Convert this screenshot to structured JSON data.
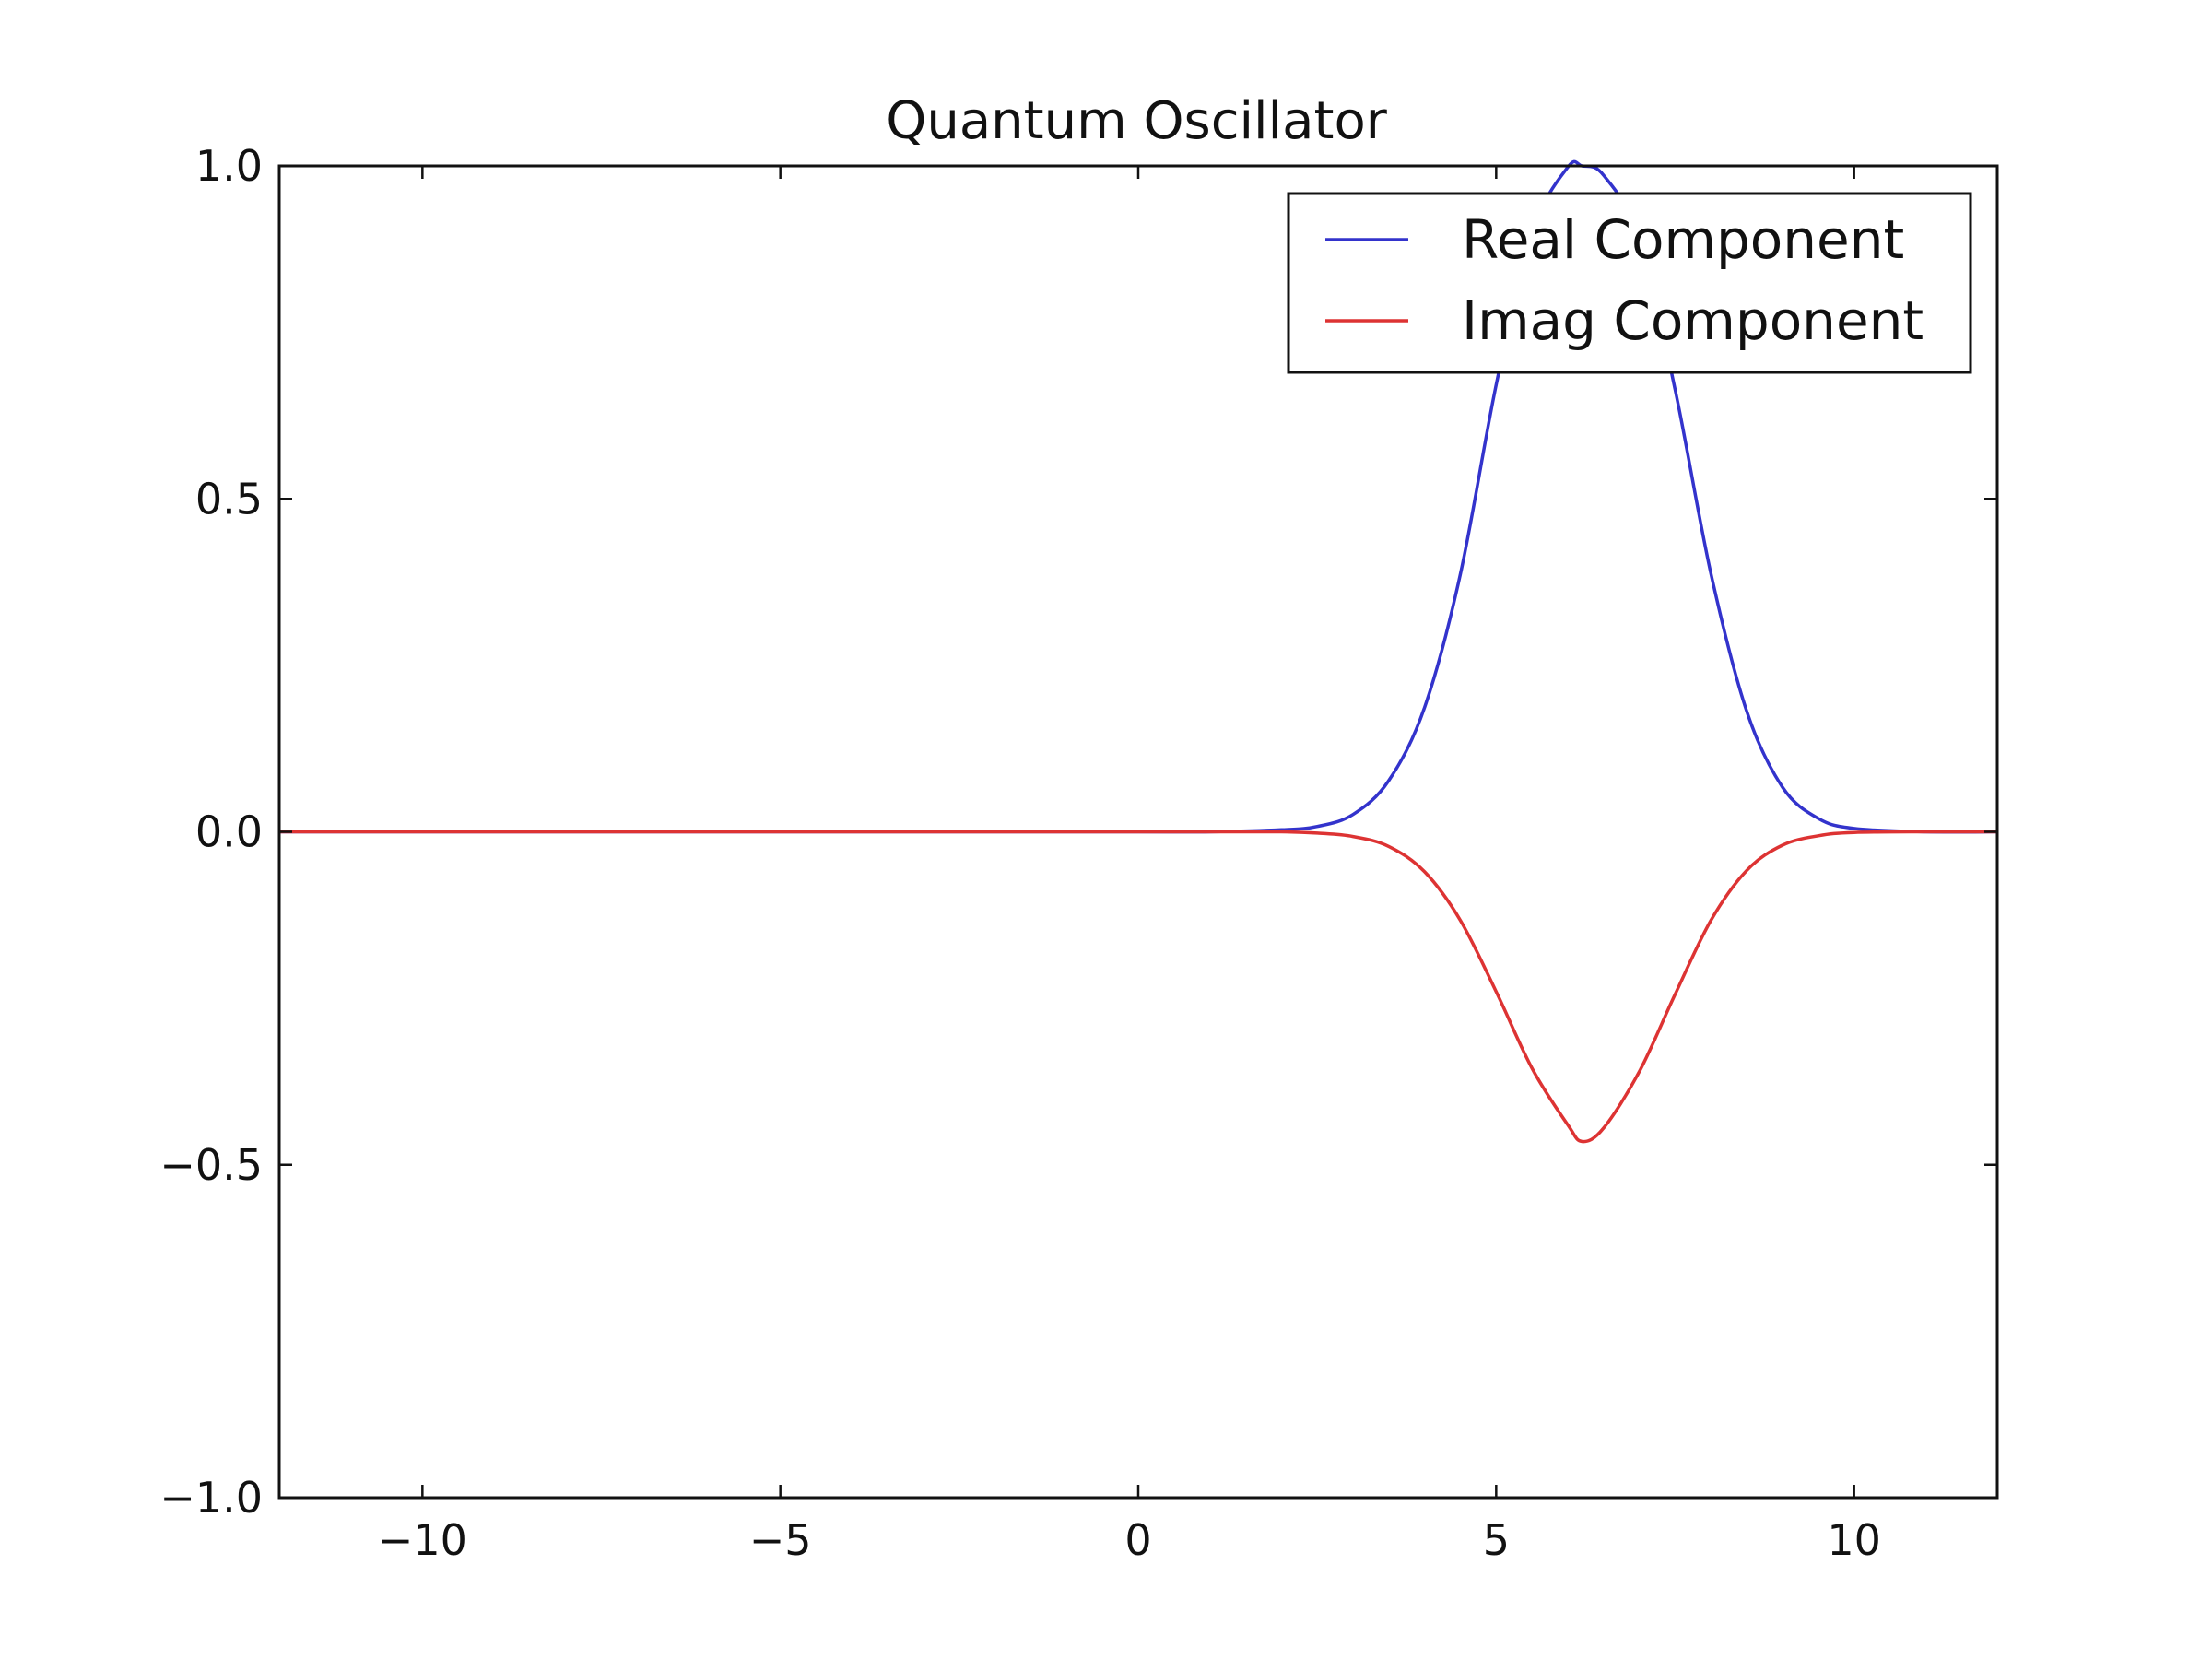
{
  "chart_data": {
    "type": "line",
    "title": "Quantum Oscillator",
    "xlabel": "",
    "ylabel": "",
    "xlim": [
      -12,
      12
    ],
    "ylim": [
      -1.0,
      1.0
    ],
    "x_ticks": [
      -10,
      -5,
      0,
      5,
      10
    ],
    "x_tick_labels": [
      "−10",
      "−5",
      "0",
      "5",
      "10"
    ],
    "y_ticks": [
      1.0,
      0.5,
      0.0,
      -0.5,
      -1.0
    ],
    "y_tick_labels": [
      "1.0",
      "0.5",
      "0.0",
      "−0.5",
      "−1.0"
    ],
    "grid": false,
    "legend": {
      "position": "top-right"
    },
    "x": [
      -12,
      -10,
      -8,
      -6,
      -4,
      -2,
      0,
      1,
      2,
      2.5,
      3,
      3.5,
      4,
      4.5,
      5,
      5.5,
      6,
      6.2,
      6.5,
      7,
      7.5,
      8,
      8.5,
      9,
      9.5,
      10,
      11,
      12
    ],
    "series": [
      {
        "name": "Real Component",
        "color": "#3333cc",
        "values": [
          0,
          0,
          0,
          0,
          0,
          0,
          0,
          0,
          0.003,
          0.008,
          0.026,
          0.077,
          0.187,
          0.387,
          0.671,
          0.9,
          0.998,
          1.0,
          0.986,
          0.892,
          0.664,
          0.388,
          0.181,
          0.067,
          0.02,
          0.005,
          0,
          0
        ]
      },
      {
        "name": "Imag Component",
        "color": "#dd3333",
        "values": [
          0,
          0,
          0,
          0,
          0,
          0,
          0,
          0,
          0,
          -0.002,
          -0.007,
          -0.022,
          -0.06,
          -0.133,
          -0.24,
          -0.355,
          -0.44,
          -0.465,
          -0.445,
          -0.36,
          -0.244,
          -0.133,
          -0.058,
          -0.02,
          -0.006,
          -0.001,
          0,
          0
        ]
      }
    ]
  }
}
